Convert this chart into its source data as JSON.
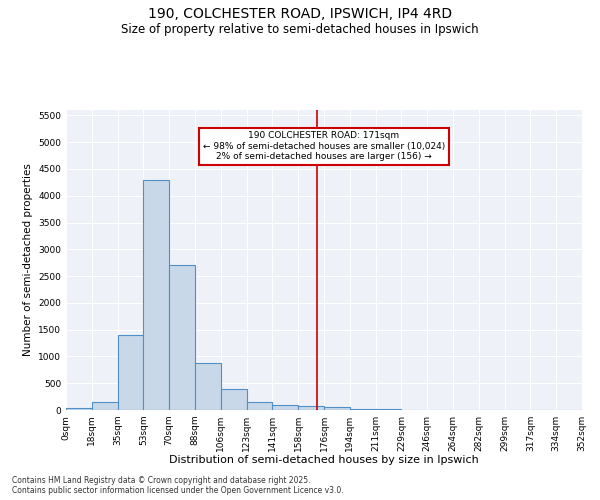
{
  "title_line1": "190, COLCHESTER ROAD, IPSWICH, IP4 4RD",
  "title_line2": "Size of property relative to semi-detached houses in Ipswich",
  "xlabel": "Distribution of semi-detached houses by size in Ipswich",
  "ylabel": "Number of semi-detached properties",
  "bar_left_edges": [
    0,
    17.6,
    35.2,
    52.8,
    70.4,
    88.0,
    105.6,
    123.2,
    140.8,
    158.4,
    176.0,
    193.6,
    211.2,
    228.8,
    246.4,
    264.0,
    281.6,
    299.2,
    316.8,
    334.4
  ],
  "bar_heights": [
    30,
    150,
    1400,
    4300,
    2700,
    870,
    400,
    150,
    100,
    70,
    50,
    20,
    10,
    5,
    3,
    1,
    0,
    0,
    0,
    0
  ],
  "bar_width": 17.6,
  "bar_facecolor": "#c8d8e8",
  "bar_edgecolor": "#5090c8",
  "bar_linewidth": 0.8,
  "tick_labels": [
    "0sqm",
    "18sqm",
    "35sqm",
    "53sqm",
    "70sqm",
    "88sqm",
    "106sqm",
    "123sqm",
    "141sqm",
    "158sqm",
    "176sqm",
    "194sqm",
    "211sqm",
    "229sqm",
    "246sqm",
    "264sqm",
    "282sqm",
    "299sqm",
    "317sqm",
    "334sqm",
    "352sqm"
  ],
  "tick_positions": [
    0,
    17.6,
    35.2,
    52.8,
    70.4,
    88.0,
    105.6,
    123.2,
    140.8,
    158.4,
    176.0,
    193.6,
    211.2,
    228.8,
    246.4,
    264.0,
    281.6,
    299.2,
    316.8,
    334.4,
    352.0
  ],
  "vline_x": 171,
  "vline_color": "#cc0000",
  "vline_linewidth": 1.2,
  "ylim": [
    0,
    5600
  ],
  "xlim": [
    0,
    352
  ],
  "yticks": [
    0,
    500,
    1000,
    1500,
    2000,
    2500,
    3000,
    3500,
    4000,
    4500,
    5000,
    5500
  ],
  "annotation_text": "190 COLCHESTER ROAD: 171sqm\n← 98% of semi-detached houses are smaller (10,024)\n2% of semi-detached houses are larger (156) →",
  "annotation_fontsize": 6.5,
  "title_fontsize1": 10,
  "title_fontsize2": 8.5,
  "xlabel_fontsize": 8,
  "ylabel_fontsize": 7.5,
  "tick_fontsize": 6.5,
  "background_color": "#eef2f8",
  "grid_color": "#ffffff",
  "footer_line1": "Contains HM Land Registry data © Crown copyright and database right 2025.",
  "footer_line2": "Contains public sector information licensed under the Open Government Licence v3.0.",
  "footer_fontsize": 5.5
}
